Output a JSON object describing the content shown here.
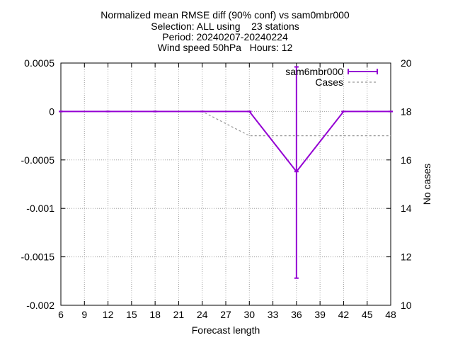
{
  "chart_data": {
    "type": "line",
    "title_lines": [
      "Normalized mean RMSE diff (90% conf) vs sam0mbr000",
      "Selection: ALL using    23 stations",
      "Period: 20240207-20240224",
      "Wind speed 50hPa   Hours: 12"
    ],
    "xlabel": "Forecast length",
    "ylabel": "",
    "y2label": "No cases",
    "xlim": [
      6,
      48
    ],
    "ylim": [
      -0.002,
      0.0005
    ],
    "y2lim": [
      10,
      20
    ],
    "x_ticks": [
      "6",
      "9",
      "12",
      "15",
      "18",
      "21",
      "24",
      "27",
      "30",
      "33",
      "36",
      "39",
      "42",
      "45",
      "48"
    ],
    "y_ticks": [
      "0.0005",
      "0",
      "-0.0005",
      "-0.001",
      "-0.0015",
      "-0.002"
    ],
    "y2_ticks": [
      "20",
      "18",
      "16",
      "14",
      "12",
      "10"
    ],
    "grid": true,
    "legend_position": "top-right",
    "series": [
      {
        "name": "sam6mbr000",
        "color": "#9400d3",
        "style": "solid-errorbars",
        "axis": "y",
        "x": [
          6,
          12,
          18,
          24,
          30,
          36,
          42,
          48
        ],
        "y": [
          0,
          0,
          0,
          0,
          0,
          -0.00062,
          0,
          0
        ],
        "err_low": [
          0,
          0,
          0,
          0,
          0,
          -0.00172,
          0,
          0
        ],
        "err_high": [
          0,
          0,
          0,
          0,
          0,
          0.00046,
          0,
          0
        ]
      },
      {
        "name": "Cases",
        "color": "#999999",
        "style": "dashed",
        "axis": "y2",
        "x": [
          6,
          12,
          18,
          24,
          30,
          36,
          42,
          48
        ],
        "y": [
          18,
          18,
          18,
          18,
          17,
          17,
          17,
          17
        ]
      }
    ]
  }
}
